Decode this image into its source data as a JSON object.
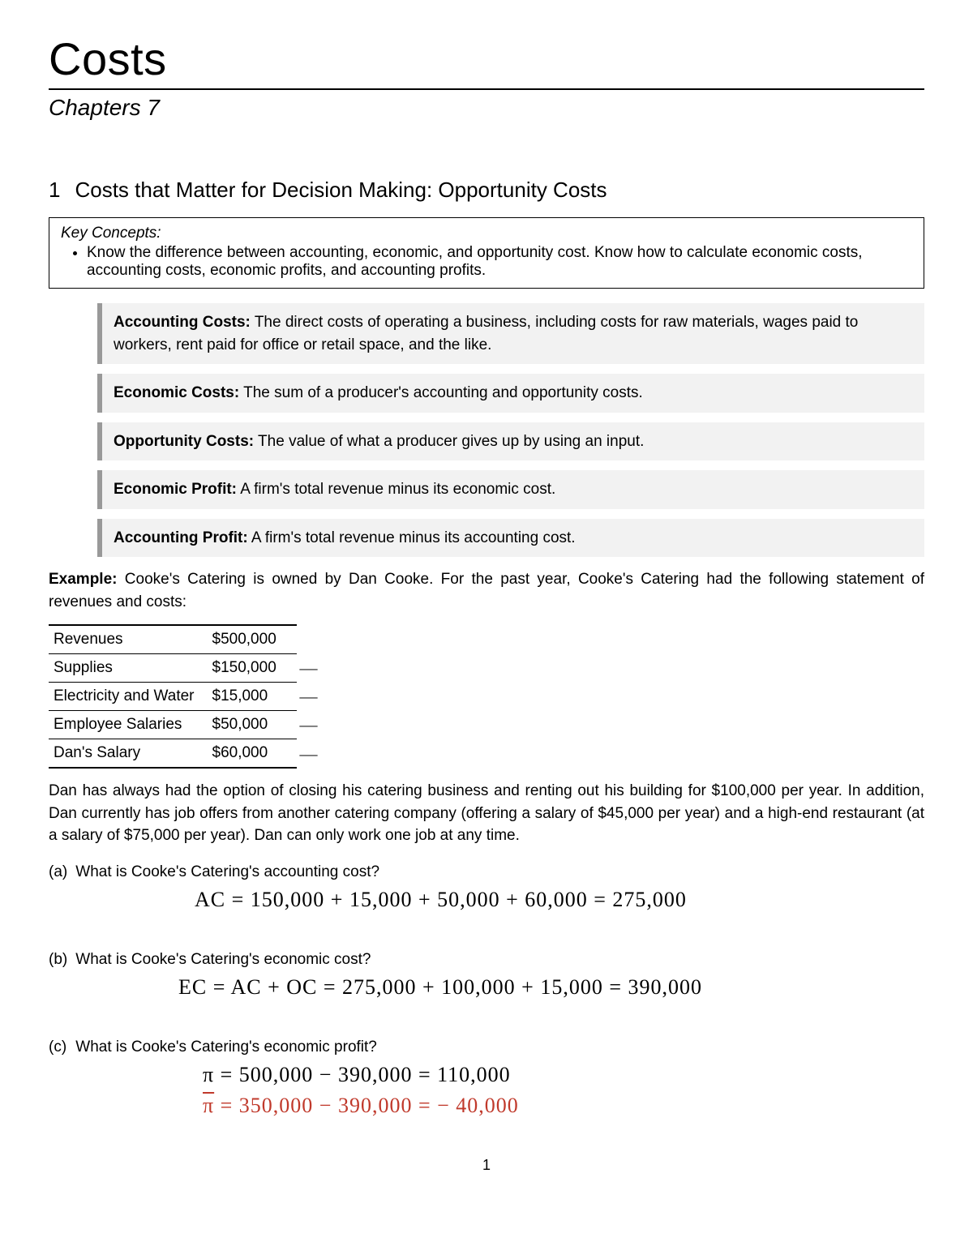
{
  "doc": {
    "title": "Costs",
    "chapters": "Chapters 7",
    "page_number": "1"
  },
  "section": {
    "number": "1",
    "heading": "Costs that Matter for Decision Making: Opportunity Costs"
  },
  "key_concepts": {
    "title": "Key Concepts:",
    "items": [
      "Know the difference between accounting, economic, and opportunity cost. Know how to calculate economic costs, accounting costs, economic profits, and accounting profits."
    ]
  },
  "definitions": [
    {
      "term": "Accounting Costs:",
      "text": " The direct costs of operating a business, including costs for raw materials, wages paid to workers, rent paid for office or retail space, and the like."
    },
    {
      "term": "Economic Costs:",
      "text": " The sum of a producer's accounting and opportunity costs."
    },
    {
      "term": "Opportunity Costs:",
      "text": " The value of what a producer gives up by using an input."
    },
    {
      "term": "Economic Profit:",
      "text": " A firm's total revenue minus its economic cost."
    },
    {
      "term": "Accounting Profit:",
      "text": " A firm's total revenue minus its accounting cost."
    }
  ],
  "example": {
    "lead": "Example:",
    "intro": "  Cooke's Catering is owned by Dan Cooke.  For the past year, Cooke's Catering had the following statement of revenues and costs:",
    "table": {
      "rows": [
        {
          "label": "Revenues",
          "value": "$500,000",
          "mark": ""
        },
        {
          "label": "Supplies",
          "value": "$150,000",
          "mark": "—"
        },
        {
          "label": "Electricity and Water",
          "value": "$15,000",
          "mark": "—"
        },
        {
          "label": "Employee Salaries",
          "value": "$50,000",
          "mark": "—"
        },
        {
          "label": "Dan's Salary",
          "value": "$60,000",
          "mark": "—"
        }
      ]
    },
    "para2": "Dan has always had the option of closing his catering business and renting out his building for $100,000 per year. In addition, Dan currently has job offers from another catering company (offering a salary of $45,000 per year) and a high-end restaurant (at a salary of $75,000 per year). Dan can only work one job at any time."
  },
  "questions": {
    "a": {
      "label": "(a)",
      "text": "What is Cooke's Catering's accounting cost?",
      "handwork": "AC = 150,000 + 15,000 + 50,000 + 60,000 = 275,000"
    },
    "b": {
      "label": "(b)",
      "text": "What is Cooke's Catering's economic cost?",
      "handwork": "EC = AC + OC = 275,000 + 100,000 + 15,000 = 390,000"
    },
    "c": {
      "label": "(c)",
      "text": "What is Cooke's Catering's economic profit?",
      "handwork1_pre": "π",
      "handwork1": " = 500,000 − 390,000 = 110,000",
      "handwork2_pre": "π",
      "handwork2": " = 350,000 − 390,000 = − 40,000"
    }
  },
  "styles": {
    "body_font_size_pt": 14,
    "title_font_size_pt": 42,
    "def_bg": "#f2f2f2",
    "def_border": "#999999",
    "hand_color_black": "#111111",
    "hand_color_red": "#c0392b",
    "page_bg": "#ffffff"
  }
}
